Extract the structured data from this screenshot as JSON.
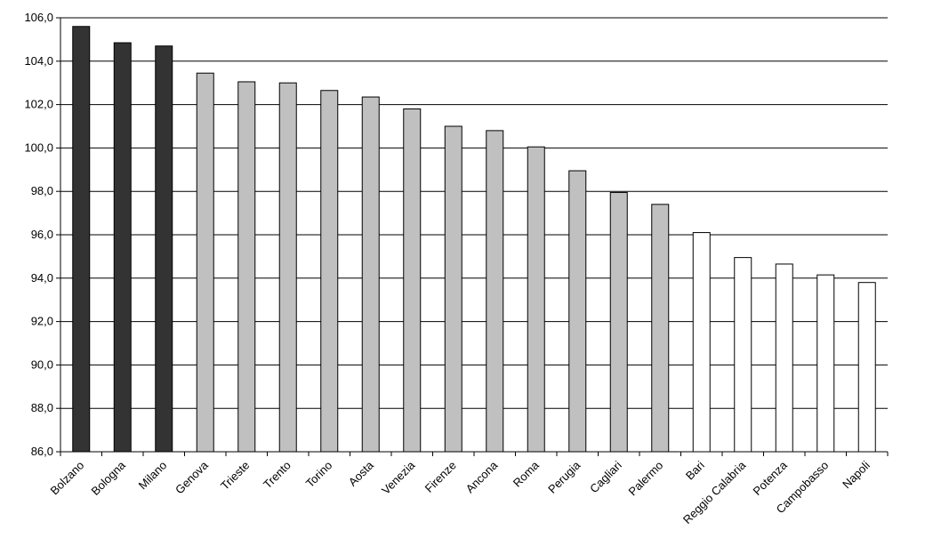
{
  "chart_data": {
    "type": "bar",
    "categories": [
      "Bolzano",
      "Bologna",
      "Milano",
      "Genova",
      "Trieste",
      "Trento",
      "Torino",
      "Aosta",
      "Venezia",
      "Firenze",
      "Ancona",
      "Roma",
      "Perugia",
      "Cagliari",
      "Palermo",
      "Bari",
      "Reggio Calabria",
      "Potenza",
      "Campobasso",
      "Napoli"
    ],
    "values": [
      105.6,
      104.85,
      104.7,
      103.45,
      103.05,
      103.0,
      102.65,
      102.35,
      101.8,
      101.0,
      100.8,
      100.05,
      98.95,
      97.95,
      97.4,
      96.1,
      94.95,
      94.65,
      94.15,
      93.8
    ],
    "groups": [
      "high",
      "high",
      "high",
      "mid",
      "mid",
      "mid",
      "mid",
      "mid",
      "mid",
      "mid",
      "mid",
      "mid",
      "mid",
      "mid",
      "mid",
      "low",
      "low",
      "low",
      "low",
      "low"
    ],
    "group_colors": {
      "high": "#333333",
      "mid": "#c0c0c0",
      "low": "#ffffff"
    },
    "ylim": [
      86,
      106
    ],
    "yticks": [
      "86,0",
      "88,0",
      "90,0",
      "92,0",
      "94,0",
      "96,0",
      "98,0",
      "100,0",
      "102,0",
      "104,0",
      "106,0"
    ],
    "ytick_values": [
      86,
      88,
      90,
      92,
      94,
      96,
      98,
      100,
      102,
      104,
      106
    ],
    "grid": true,
    "title": "",
    "xlabel": "",
    "ylabel": ""
  }
}
